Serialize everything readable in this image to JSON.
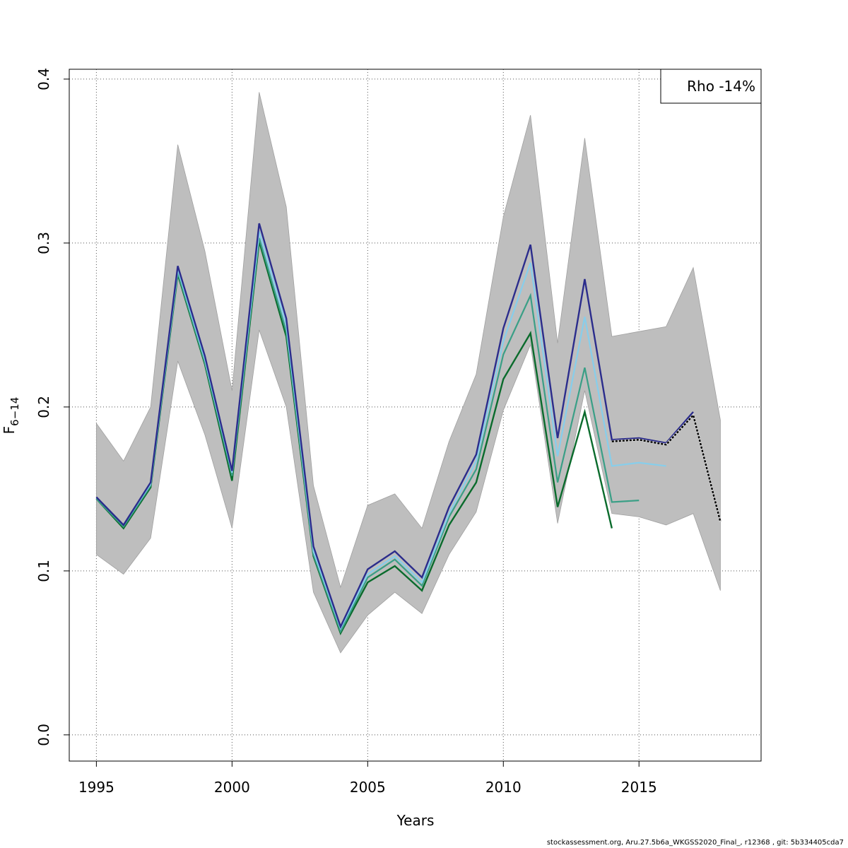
{
  "chart_data": {
    "type": "line",
    "xlabel": "Years",
    "ylabel_main": "F",
    "ylabel_sub": "6−14",
    "xlim": [
      1994,
      2019.5
    ],
    "ylim": [
      -0.016,
      0.406
    ],
    "xticks": [
      1995,
      2000,
      2005,
      2010,
      2015
    ],
    "yticks": [
      0.0,
      0.1,
      0.2,
      0.3,
      0.4
    ],
    "ytick_labels": [
      "0.0",
      "0.1",
      "0.2",
      "0.3",
      "0.4"
    ],
    "grid": true,
    "legend": {
      "text": "Rho -14%",
      "position": "top-right"
    },
    "band": {
      "color": "#bebebe",
      "x": [
        1995,
        1996,
        1997,
        1998,
        1999,
        2000,
        2001,
        2002,
        2003,
        2004,
        2005,
        2006,
        2007,
        2008,
        2009,
        2010,
        2011,
        2012,
        2013,
        2014,
        2015,
        2016,
        2017,
        2018
      ],
      "upper": [
        0.19,
        0.167,
        0.2,
        0.36,
        0.295,
        0.21,
        0.392,
        0.322,
        0.152,
        0.09,
        0.14,
        0.147,
        0.126,
        0.179,
        0.22,
        0.316,
        0.378,
        0.239,
        0.364,
        0.243,
        0.246,
        0.249,
        0.285,
        0.192
      ],
      "lower": [
        0.11,
        0.098,
        0.12,
        0.228,
        0.183,
        0.126,
        0.247,
        0.2,
        0.087,
        0.05,
        0.073,
        0.087,
        0.074,
        0.11,
        0.136,
        0.198,
        0.238,
        0.129,
        0.21,
        0.135,
        0.133,
        0.128,
        0.135,
        0.088
      ]
    },
    "series": [
      {
        "color": "#0a6b2c",
        "width": 2.4,
        "x": [
          1995,
          1996,
          1997,
          1998,
          1999,
          2000,
          2001,
          2002,
          2003,
          2004,
          2005,
          2006,
          2007,
          2008,
          2009,
          2010,
          2011,
          2012,
          2013,
          2014
        ],
        "values": [
          0.144,
          0.126,
          0.151,
          0.281,
          0.226,
          0.155,
          0.301,
          0.243,
          0.109,
          0.062,
          0.093,
          0.103,
          0.088,
          0.128,
          0.154,
          0.217,
          0.245,
          0.139,
          0.197,
          0.126
        ]
      },
      {
        "color": "#3a9f86",
        "width": 2.2,
        "x": [
          1995,
          1996,
          1997,
          1998,
          1999,
          2000,
          2001,
          2002,
          2003,
          2004,
          2005,
          2006,
          2007,
          2008,
          2009,
          2010,
          2011,
          2012,
          2013,
          2014,
          2015
        ],
        "values": [
          0.144,
          0.127,
          0.152,
          0.282,
          0.227,
          0.158,
          0.303,
          0.246,
          0.11,
          0.063,
          0.096,
          0.107,
          0.091,
          0.133,
          0.162,
          0.232,
          0.268,
          0.154,
          0.224,
          0.142,
          0.143
        ]
      },
      {
        "color": "#87ceeb",
        "width": 2.2,
        "x": [
          1995,
          1996,
          1997,
          1998,
          1999,
          2000,
          2001,
          2002,
          2003,
          2004,
          2005,
          2006,
          2007,
          2008,
          2009,
          2010,
          2011,
          2012,
          2013,
          2014,
          2015,
          2016
        ],
        "values": [
          0.145,
          0.128,
          0.153,
          0.284,
          0.229,
          0.16,
          0.307,
          0.25,
          0.112,
          0.065,
          0.098,
          0.109,
          0.093,
          0.135,
          0.167,
          0.24,
          0.288,
          0.17,
          0.255,
          0.164,
          0.166,
          0.164
        ]
      },
      {
        "color": "#2b2c8c",
        "width": 2.4,
        "x": [
          1995,
          1996,
          1997,
          1998,
          1999,
          2000,
          2001,
          2002,
          2003,
          2004,
          2005,
          2006,
          2007,
          2008,
          2009,
          2010,
          2011,
          2012,
          2013,
          2014,
          2015,
          2016,
          2017
        ],
        "values": [
          0.145,
          0.128,
          0.154,
          0.286,
          0.231,
          0.161,
          0.312,
          0.254,
          0.115,
          0.066,
          0.101,
          0.112,
          0.096,
          0.139,
          0.171,
          0.248,
          0.299,
          0.181,
          0.278,
          0.18,
          0.181,
          0.178,
          0.197
        ]
      },
      {
        "color": "#000000",
        "width": 2.4,
        "dashed": true,
        "x": [
          2014,
          2015,
          2016,
          2017,
          2018
        ],
        "values": [
          0.179,
          0.18,
          0.177,
          0.195,
          0.13
        ]
      }
    ]
  },
  "footer": "stockassessment.org, Aru.27.5b6a_WKGSS2020_Final_, r12368 , git: 5b334405cda7"
}
